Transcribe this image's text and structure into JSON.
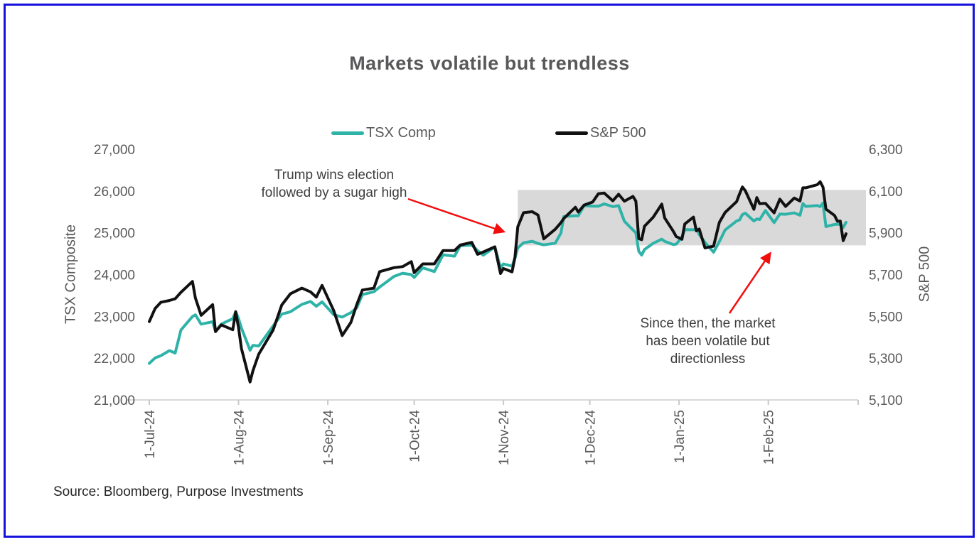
{
  "source": {
    "text": "Source: Bloomberg, Purpose Investments"
  },
  "colors": {
    "accent_teal": "#2FB3A8",
    "series_black": "#111111",
    "arrow_red": "#F20D0D",
    "shaded_gray": "#D9D9D9",
    "frame_blue": "#1512DB",
    "text_gray": "#595959"
  },
  "chart_data": {
    "type": "line",
    "title": "Markets volatile but trendless",
    "grid": false,
    "legend_position": "top-center",
    "x_dates": [
      "2024-07-01",
      "2024-07-03",
      "2024-07-05",
      "2024-07-08",
      "2024-07-10",
      "2024-07-12",
      "2024-07-16",
      "2024-07-17",
      "2024-07-19",
      "2024-07-23",
      "2024-07-24",
      "2024-07-26",
      "2024-07-30",
      "2024-07-31",
      "2024-08-01",
      "2024-08-02",
      "2024-08-05",
      "2024-08-06",
      "2024-08-08",
      "2024-08-13",
      "2024-08-16",
      "2024-08-19",
      "2024-08-23",
      "2024-08-26",
      "2024-08-28",
      "2024-08-30",
      "2024-09-03",
      "2024-09-06",
      "2024-09-09",
      "2024-09-11",
      "2024-09-13",
      "2024-09-17",
      "2024-09-19",
      "2024-09-24",
      "2024-09-27",
      "2024-09-30",
      "2024-10-01",
      "2024-10-04",
      "2024-10-08",
      "2024-10-11",
      "2024-10-15",
      "2024-10-17",
      "2024-10-21",
      "2024-10-23",
      "2024-10-25",
      "2024-10-29",
      "2024-10-31",
      "2024-11-01",
      "2024-11-04",
      "2024-11-05",
      "2024-11-06",
      "2024-11-08",
      "2024-11-11",
      "2024-11-13",
      "2024-11-15",
      "2024-11-19",
      "2024-11-21",
      "2024-11-22",
      "2024-11-26",
      "2024-11-27",
      "2024-11-29",
      "2024-12-02",
      "2024-12-04",
      "2024-12-06",
      "2024-12-09",
      "2024-12-11",
      "2024-12-13",
      "2024-12-16",
      "2024-12-17",
      "2024-12-18",
      "2024-12-19",
      "2024-12-20",
      "2024-12-23",
      "2024-12-26",
      "2024-12-27",
      "2024-12-30",
      "2024-12-31",
      "2025-01-02",
      "2025-01-03",
      "2025-01-06",
      "2025-01-07",
      "2025-01-08",
      "2025-01-10",
      "2025-01-13",
      "2025-01-15",
      "2025-01-17",
      "2025-01-21",
      "2025-01-22",
      "2025-01-23",
      "2025-01-24",
      "2025-01-27",
      "2025-01-28",
      "2025-01-29",
      "2025-01-31",
      "2025-02-03",
      "2025-02-05",
      "2025-02-07",
      "2025-02-10",
      "2025-02-12",
      "2025-02-13",
      "2025-02-14",
      "2025-02-18",
      "2025-02-19",
      "2025-02-20",
      "2025-02-21",
      "2025-02-24",
      "2025-02-25",
      "2025-02-26",
      "2025-02-27",
      "2025-02-28"
    ],
    "series": [
      {
        "name": "TSX Comp",
        "axis": "left",
        "color": "#2FB3A8",
        "values": [
          21875,
          22004,
          22059,
          22180,
          22121,
          22673,
          22995,
          23037,
          22814,
          22872,
          22639,
          22814,
          22944,
          23111,
          22945,
          22720,
          22190,
          22307,
          22290,
          22767,
          23054,
          23110,
          23286,
          23356,
          23242,
          23346,
          23043,
          22982,
          23089,
          23200,
          23520,
          23589,
          23700,
          23956,
          24033,
          23998,
          23931,
          24162,
          24072,
          24471,
          24440,
          24690,
          24706,
          24573,
          24463,
          24661,
          24158,
          24255,
          24200,
          24390,
          24637,
          24759,
          24798,
          24744,
          24711,
          24751,
          25000,
          25390,
          25405,
          25405,
          25648,
          25635,
          25635,
          25691,
          25625,
          25649,
          25274,
          25068,
          24997,
          24557,
          24466,
          24599,
          24748,
          24846,
          24796,
          24717,
          24728,
          24898,
          25074,
          25073,
          25099,
          24958,
          24768,
          24536,
          24789,
          25068,
          25282,
          25308,
          25435,
          25469,
          25282,
          25331,
          25316,
          25533,
          25242,
          25448,
          25443,
          25476,
          25420,
          25698,
          25630,
          25650,
          25626,
          25710,
          25147,
          25200,
          25203,
          25204,
          25128,
          25250
        ]
      },
      {
        "name": "S&P 500",
        "axis": "right",
        "color": "#111111",
        "values": [
          5475,
          5537,
          5567,
          5576,
          5584,
          5615,
          5667,
          5588,
          5505,
          5556,
          5427,
          5459,
          5436,
          5522,
          5446,
          5346,
          5186,
          5240,
          5319,
          5434,
          5554,
          5608,
          5635,
          5617,
          5592,
          5648,
          5529,
          5408,
          5471,
          5554,
          5626,
          5635,
          5714,
          5733,
          5738,
          5762,
          5709,
          5751,
          5751,
          5815,
          5815,
          5841,
          5854,
          5797,
          5808,
          5833,
          5705,
          5729,
          5713,
          5783,
          5929,
          5996,
          6001,
          5985,
          5871,
          5917,
          5949,
          5969,
          6022,
          5999,
          6032,
          6047,
          6087,
          6090,
          6053,
          6084,
          6051,
          6074,
          6051,
          5872,
          5867,
          5931,
          5974,
          6037,
          5971,
          5907,
          5882,
          5869,
          5942,
          5975,
          5909,
          5918,
          5827,
          5836,
          5950,
          5997,
          6049,
          6086,
          6119,
          6101,
          6012,
          6068,
          6039,
          6041,
          5995,
          6061,
          6026,
          6066,
          6052,
          6115,
          6115,
          6130,
          6144,
          6118,
          6013,
          5983,
          5955,
          5956,
          5862,
          5895
        ]
      }
    ],
    "left_axis": {
      "label": "TSX Composite",
      "min": 21000,
      "max": 27000,
      "tick_step": 1000,
      "ticks": [
        {
          "value": 27000,
          "label": "27,000"
        },
        {
          "value": 26000,
          "label": "26,000"
        },
        {
          "value": 25000,
          "label": "25,000"
        },
        {
          "value": 24000,
          "label": "24,000"
        },
        {
          "value": 23000,
          "label": "23,000"
        },
        {
          "value": 22000,
          "label": "22,000"
        },
        {
          "value": 21000,
          "label": "21,000"
        }
      ]
    },
    "right_axis": {
      "label": "S&P 500",
      "min": 5100,
      "max": 6300,
      "tick_step": 200,
      "ticks": [
        {
          "value": 6300,
          "label": "6,300"
        },
        {
          "value": 6100,
          "label": "6,100"
        },
        {
          "value": 5900,
          "label": "5,900"
        },
        {
          "value": 5700,
          "label": "5,700"
        },
        {
          "value": 5500,
          "label": "5,500"
        },
        {
          "value": 5300,
          "label": "5,300"
        },
        {
          "value": 5100,
          "label": "5,100"
        }
      ]
    },
    "x_ticks": [
      {
        "date": "2024-07-01",
        "label": "1-Jul-24"
      },
      {
        "date": "2024-08-01",
        "label": "1-Aug-24"
      },
      {
        "date": "2024-09-01",
        "label": "1-Sep-24"
      },
      {
        "date": "2024-10-01",
        "label": "1-Oct-24"
      },
      {
        "date": "2024-11-01",
        "label": "1-Nov-24"
      },
      {
        "date": "2024-12-01",
        "label": "1-Dec-24"
      },
      {
        "date": "2025-01-01",
        "label": "1-Jan-25"
      },
      {
        "date": "2025-02-01",
        "label": "1-Feb-25"
      }
    ],
    "shaded_region": {
      "from_date": "2024-11-06",
      "sp500_top": 6105,
      "sp500_bottom": 5840,
      "color": "#D9D9D9"
    },
    "annotations": {
      "election": {
        "line1": "Trump wins election",
        "line2": "followed by a sugar high"
      },
      "volatile": {
        "line1": "Since then, the market",
        "line2": "has been volatile but",
        "line3": "directionless"
      }
    }
  }
}
